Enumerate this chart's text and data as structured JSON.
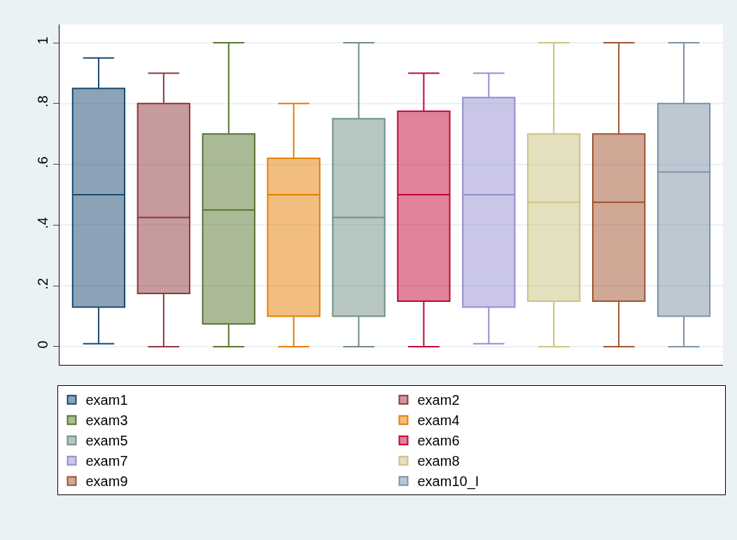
{
  "chart_data": {
    "type": "box",
    "categories": [
      null
    ],
    "ylim": [
      -0.06,
      1.06
    ],
    "yticks": [
      0,
      {
        "value": 0.2,
        "label": ".2"
      },
      {
        "value": 0.4,
        "label": ".4"
      },
      {
        "value": 0.6,
        "label": ".6"
      },
      {
        "value": 0.8,
        "label": ".8"
      },
      1
    ],
    "grid": "y",
    "legend": "bottom",
    "tick_labels": "y",
    "series": [
      {
        "name": "exam1",
        "color": "#1a476f",
        "boxes": [
          {
            "low": 0.01,
            "q1": 0.13,
            "median": 0.5,
            "q3": 0.85,
            "high": 0.95
          }
        ]
      },
      {
        "name": "exam2",
        "color": "#90353b",
        "boxes": [
          {
            "low": 0,
            "q1": 0.175,
            "median": 0.425,
            "q3": 0.8,
            "high": 0.9
          }
        ]
      },
      {
        "name": "exam3",
        "color": "#55752f",
        "boxes": [
          {
            "low": 0,
            "q1": 0.075,
            "median": 0.45,
            "q3": 0.7,
            "high": 1
          }
        ]
      },
      {
        "name": "exam4",
        "color": "#e37e00",
        "boxes": [
          {
            "low": 0,
            "q1": 0.1,
            "median": 0.5,
            "q3": 0.62,
            "high": 0.8
          }
        ]
      },
      {
        "name": "exam5",
        "color": "#6e8e84",
        "boxes": [
          {
            "low": 0,
            "q1": 0.1,
            "median": 0.425,
            "q3": 0.75,
            "high": 1
          }
        ]
      },
      {
        "name": "exam6",
        "color": "#c10534",
        "boxes": [
          {
            "low": 0,
            "q1": 0.15,
            "median": 0.5,
            "q3": 0.775,
            "high": 0.9
          }
        ]
      },
      {
        "name": "exam7",
        "color": "#938dd2",
        "boxes": [
          {
            "low": 0.01,
            "q1": 0.13,
            "median": 0.5,
            "q3": 0.82,
            "high": 0.9
          }
        ]
      },
      {
        "name": "exam8",
        "color": "#cac27e",
        "boxes": [
          {
            "low": 0,
            "q1": 0.15,
            "median": 0.475,
            "q3": 0.7,
            "high": 1
          }
        ]
      },
      {
        "name": "exam9",
        "color": "#a0522d",
        "boxes": [
          {
            "low": 0,
            "q1": 0.15,
            "median": 0.475,
            "q3": 0.7,
            "high": 1
          }
        ]
      },
      {
        "name": "exam10_I",
        "color": "#7b92a8",
        "boxes": [
          {
            "low": 0,
            "q1": 0.1,
            "median": 0.575,
            "q3": 0.8,
            "high": 1
          }
        ]
      }
    ]
  }
}
